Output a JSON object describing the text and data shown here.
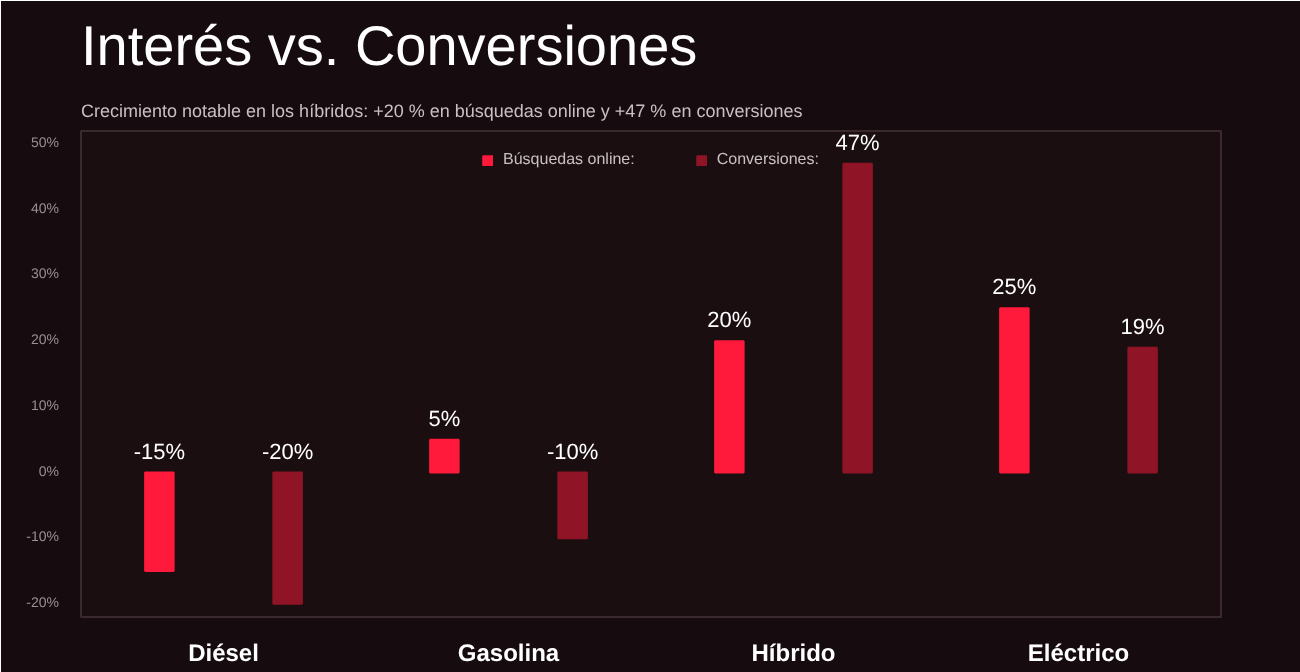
{
  "chart_data": {
    "type": "bar",
    "title": "Interés vs. Conversiones",
    "subtitle": "Crecimiento notable en los híbridos: +20 % en búsquedas online y +47 % en conversiones",
    "categories": [
      "Diésel",
      "Gasolina",
      "Híbrido",
      "Eléctrico"
    ],
    "series": [
      {
        "name": "Búsquedas online:",
        "color": "#ff1a3c",
        "values": [
          -15,
          5,
          20,
          25
        ],
        "value_labels": [
          "-15%",
          "5%",
          "20%",
          "25%"
        ]
      },
      {
        "name": "Conversiones:",
        "color": "#8e1426",
        "values": [
          -20,
          -10,
          47,
          19
        ],
        "value_labels": [
          "-20%",
          "-10%",
          "47%",
          "19%"
        ]
      }
    ],
    "ylim": [
      -22,
      52
    ],
    "yticks": [
      {
        "value": -20,
        "label": "-20%"
      },
      {
        "value": -10,
        "label": "-10%"
      },
      {
        "value": 0,
        "label": "0%"
      },
      {
        "value": 10,
        "label": "10%"
      },
      {
        "value": 20,
        "label": "20%"
      },
      {
        "value": 30,
        "label": "30%"
      },
      {
        "value": 40,
        "label": "40%"
      },
      {
        "value": 50,
        "label": "50%"
      }
    ],
    "grid": false,
    "legend": "top"
  }
}
